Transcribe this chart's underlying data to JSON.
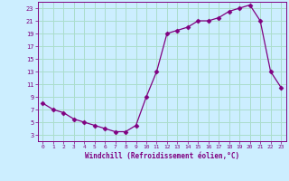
{
  "x": [
    0,
    1,
    2,
    3,
    4,
    5,
    6,
    7,
    8,
    9,
    10,
    11,
    12,
    13,
    14,
    15,
    16,
    17,
    18,
    19,
    20,
    21,
    22,
    23
  ],
  "y": [
    8,
    7,
    6.5,
    5.5,
    5,
    4.5,
    4,
    3.5,
    3.5,
    4.5,
    9,
    13,
    19,
    19.5,
    20,
    21,
    21,
    21.5,
    22.5,
    23,
    23.5,
    21,
    13,
    10.5
  ],
  "line_color": "#800080",
  "marker": "D",
  "marker_size": 2.5,
  "bg_color": "#cceeff",
  "grid_color": "#aaddcc",
  "xlabel": "Windchill (Refroidissement éolien,°C)",
  "xlabel_color": "#800080",
  "tick_color": "#800080",
  "ylim": [
    2,
    24
  ],
  "xlim": [
    -0.5,
    23.5
  ],
  "yticks": [
    3,
    5,
    7,
    9,
    11,
    13,
    15,
    17,
    19,
    21,
    23
  ],
  "xticks": [
    0,
    1,
    2,
    3,
    4,
    5,
    6,
    7,
    8,
    9,
    10,
    11,
    12,
    13,
    14,
    15,
    16,
    17,
    18,
    19,
    20,
    21,
    22,
    23
  ]
}
